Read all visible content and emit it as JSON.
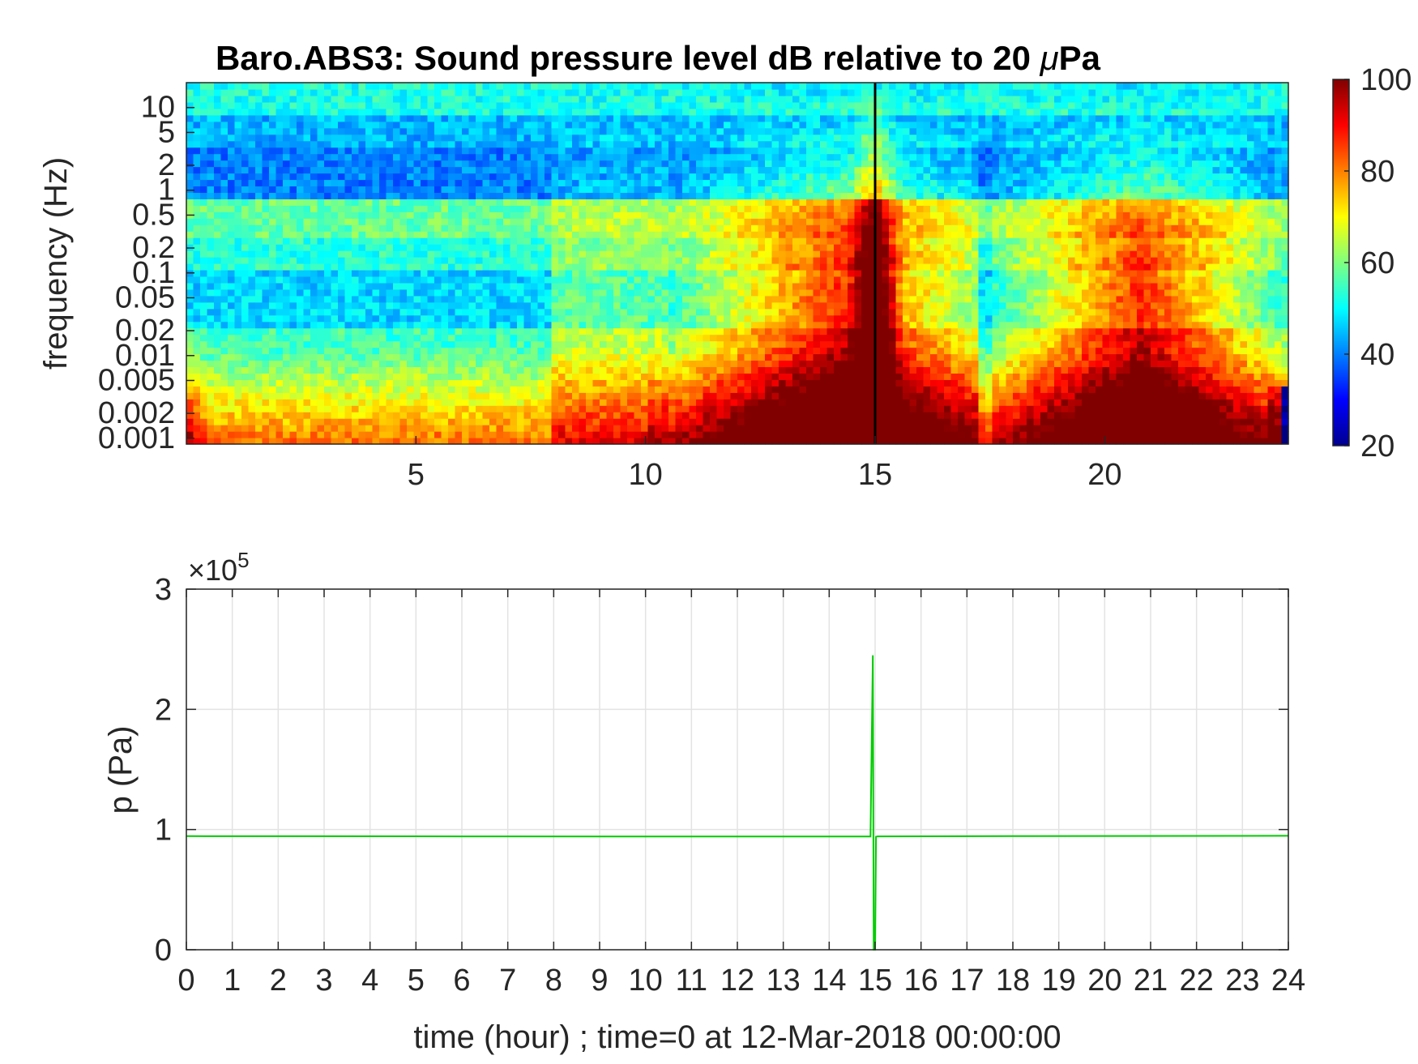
{
  "chart_data": [
    {
      "type": "heatmap",
      "title_main": "Baro.ABS3: Sound pressure level dB relative to 20 ",
      "title_mu": "μ",
      "title_end": "Pa",
      "ylabel": "frequency (Hz)",
      "xlabel": "",
      "yscale": "log",
      "xlim": [
        0,
        24
      ],
      "ylim": [
        0.00085,
        20
      ],
      "x_ticks": [
        5,
        10,
        15,
        20
      ],
      "x_tick_labels": [
        "5",
        "10",
        "15",
        "20"
      ],
      "y_ticks": [
        0.001,
        0.002,
        0.005,
        0.01,
        0.02,
        0.05,
        0.1,
        0.2,
        0.5,
        1,
        2,
        5,
        10
      ],
      "y_tick_labels": [
        "0.001",
        "0.002",
        "0.005",
        "0.01",
        "0.02",
        "0.05",
        "0.1",
        "0.2",
        "0.5",
        "1",
        "2",
        "5",
        "10"
      ],
      "colorbar": {
        "colormap": "jet",
        "range": [
          20,
          100
        ],
        "ticks": [
          20,
          40,
          60,
          80,
          100
        ],
        "tick_labels": [
          "20",
          "40",
          "60",
          "80",
          "100"
        ]
      },
      "features": {
        "event_line_time_hour": 15,
        "event_line_color": "#000000",
        "high_activity_periods_hour": [
          [
            10,
            17
          ],
          [
            18,
            24
          ]
        ],
        "quiet_period_hour": [
          0,
          10
        ]
      }
    },
    {
      "type": "line",
      "ylabel": "p (Pa)",
      "xlabel": "time (hour) ; time=0 at 12-Mar-2018 00:00:00",
      "xlim": [
        0,
        24
      ],
      "ylim": [
        0,
        3
      ],
      "y_exponent_label": "×10",
      "y_exponent_power": "5",
      "x_ticks": [
        0,
        1,
        2,
        3,
        4,
        5,
        6,
        7,
        8,
        9,
        10,
        11,
        12,
        13,
        14,
        15,
        16,
        17,
        18,
        19,
        20,
        21,
        22,
        23,
        24
      ],
      "x_tick_labels": [
        "0",
        "1",
        "2",
        "3",
        "4",
        "5",
        "6",
        "7",
        "8",
        "9",
        "10",
        "11",
        "12",
        "13",
        "14",
        "15",
        "16",
        "17",
        "18",
        "19",
        "20",
        "21",
        "22",
        "23",
        "24"
      ],
      "y_ticks": [
        0,
        1,
        2,
        3
      ],
      "y_tick_labels": [
        "0",
        "1",
        "2",
        "3"
      ],
      "grid": true,
      "series": [
        {
          "color": "#00cc00",
          "x": [
            0,
            6,
            12,
            14.9,
            14.95,
            14.97,
            15.0,
            15.02,
            15.05,
            18,
            24
          ],
          "y": [
            0.945,
            0.943,
            0.942,
            0.942,
            2.45,
            0.0,
            0.0,
            0.94,
            0.943,
            0.945,
            0.948
          ]
        }
      ]
    }
  ]
}
